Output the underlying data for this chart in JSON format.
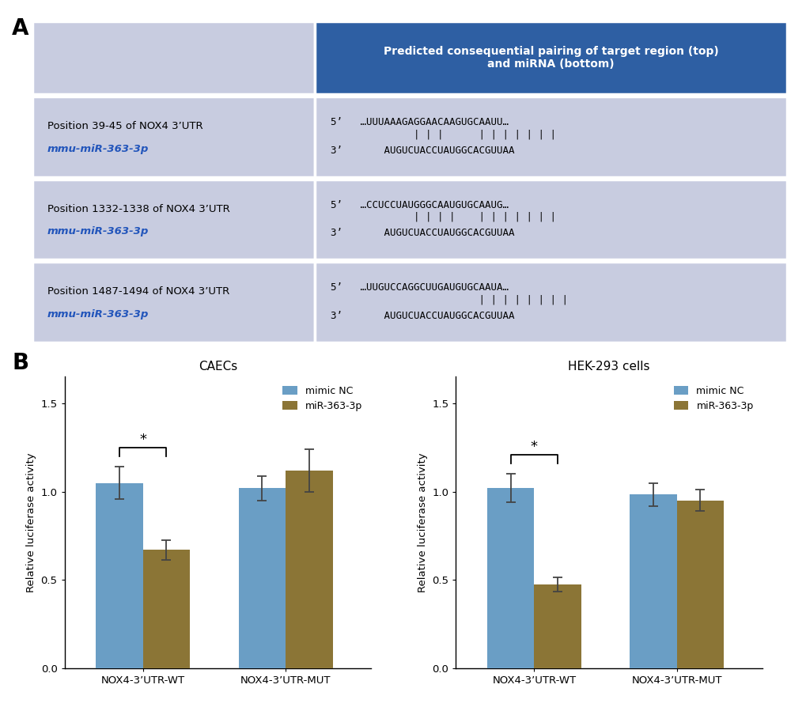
{
  "panel_A": {
    "header_bg": "#2E5FA3",
    "header_text_color": "#FFFFFF",
    "header_text": "Predicted consequential pairing of target region (top)\nand miRNA (bottom)",
    "row_bg": "#C8CCE0",
    "left_col_bg": "#C8CCE0",
    "divider_color": "#FFFFFF",
    "rows": [
      {
        "left_line1": "Position 39-45 of NOX4 3’UTR",
        "left_line2": "mmu-miR-363-3p",
        "seq_top": "5’   …UUUAAAGAGGAACAAGUGCAAUU…",
        "seq_bonds": "              | | |      | | | | | | |",
        "seq_bot": "3’       AUGUCUACCUAUGGCACGUUAA",
        "highlight_seq_top": "GUGCAAUU",
        "highlight_seq_bot": "CACGUUAA"
      },
      {
        "left_line1": "Position 1332-1338 of NOX4 3’UTR",
        "left_line2": "mmu-miR-363-3p",
        "seq_top": "5’   …CCUCCUAUGGGCAAUGUGCAAUG…",
        "seq_bonds": "              | | | |    | | | | | | |",
        "seq_bot": "3’       AUGUCUACCUAUGGCACGUUAA",
        "highlight_seq_top": "GUGCAAUG",
        "highlight_seq_bot": "CACGUUAA"
      },
      {
        "left_line1": "Position 1487-1494 of NOX4 3’UTR",
        "left_line2": "mmu-miR-363-3p",
        "seq_top": "5’   …UUGUCCAGGCUUGAUGUGCAAUA…",
        "seq_bonds": "                         | | | | | | | |",
        "seq_bot": "3’       AUGUCUACCUAUGGCACGUUAA",
        "highlight_seq_top": "UGUGCAAUA",
        "highlight_seq_bot": "CACGUUAA"
      }
    ]
  },
  "panel_B": {
    "caecs": {
      "title": "CAECs",
      "categories": [
        "NOX4-3’UTR-WT",
        "NOX4-3’UTR-MUT"
      ],
      "mimic_nc_values": [
        1.05,
        1.02
      ],
      "mimic_nc_errors": [
        0.09,
        0.07
      ],
      "mir363_values": [
        0.67,
        1.12
      ],
      "mir363_errors": [
        0.055,
        0.12
      ],
      "ylabel": "Relative luciferase activity",
      "ylim": [
        0,
        1.65
      ],
      "yticks": [
        0.0,
        0.5,
        1.0,
        1.5
      ]
    },
    "hek293": {
      "title": "HEK-293 cells",
      "categories": [
        "NOX4-3’UTR-WT",
        "NOX4-3’UTR-MUT"
      ],
      "mimic_nc_values": [
        1.02,
        0.985
      ],
      "mimic_nc_errors": [
        0.08,
        0.065
      ],
      "mir363_values": [
        0.475,
        0.95
      ],
      "mir363_errors": [
        0.04,
        0.06
      ],
      "ylabel": "Relative luciferase activity",
      "ylim": [
        0,
        1.65
      ],
      "yticks": [
        0.0,
        0.5,
        1.0,
        1.5
      ]
    },
    "bar_color_nc": "#6A9EC5",
    "bar_color_mir": "#8B7536",
    "legend_labels": [
      "mimic NC",
      "miR-363-3p"
    ]
  }
}
